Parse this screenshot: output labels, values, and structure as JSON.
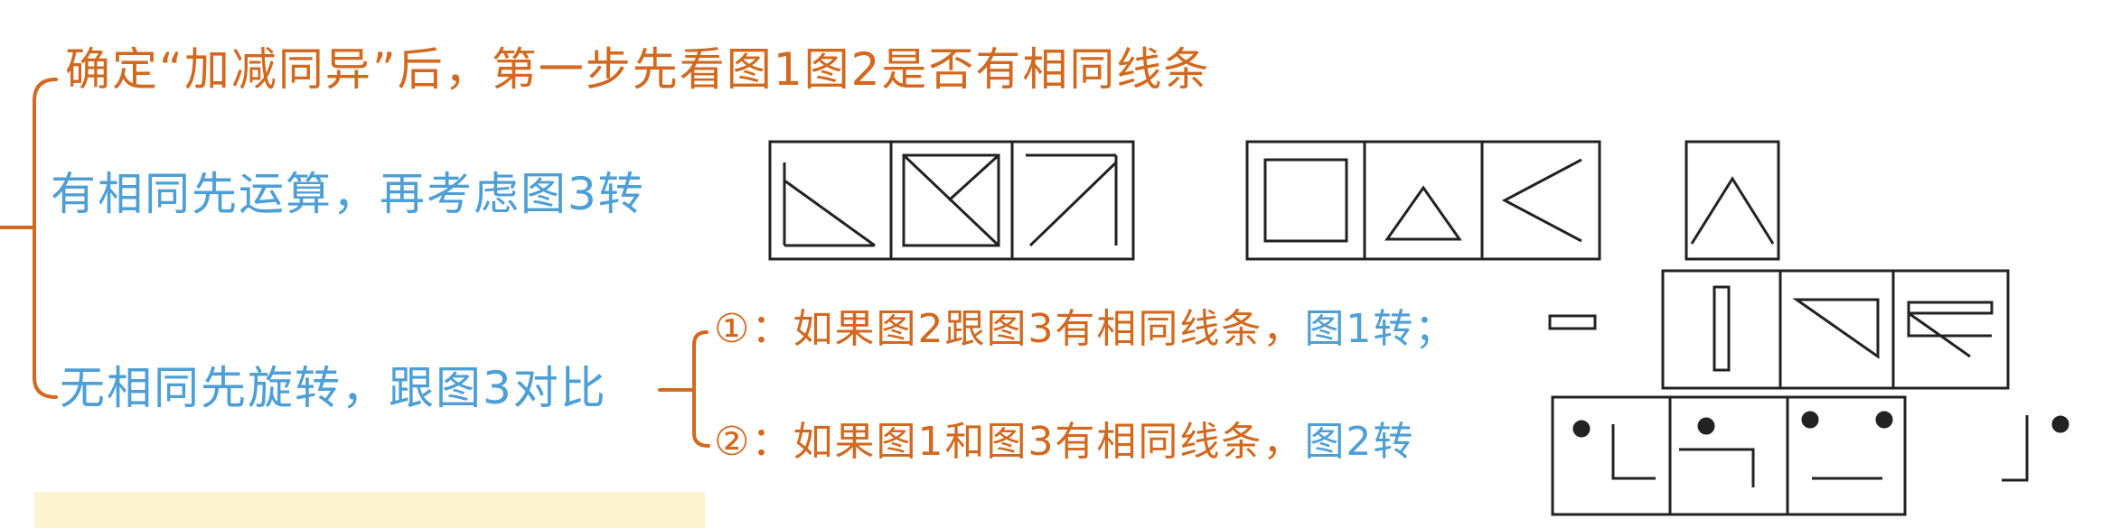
{
  "lines": {
    "line1": "确定“加减同异”后，第一步先看图1图2是否有相同线条",
    "line2": "有相同先运算，再考虑图3转",
    "line3": "无相同先旋转，跟图3对比",
    "sub1_lead": "①：如果图2跟图3有相同线条，",
    "sub1_tail": "图1转；",
    "sub2_lead": "②：如果图1和图3有相同线条，",
    "sub2_tail": "图2转"
  },
  "colors": {
    "orange": "#d2691e",
    "blue": "#4d9fd6",
    "note_bg": "#fdf4d2"
  }
}
